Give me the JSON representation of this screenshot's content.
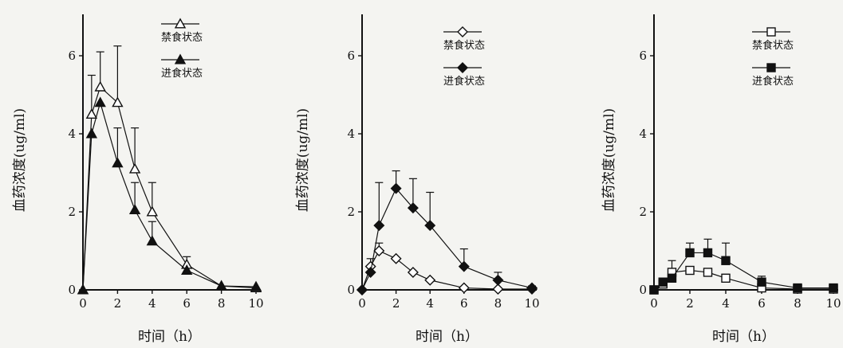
{
  "chart_data": [
    {
      "type": "line",
      "title": "",
      "xlabel": "时间（h）",
      "ylabel": "血药浓度(ug/ml)",
      "xlim": [
        0,
        10
      ],
      "ylim": [
        0,
        7
      ],
      "x_ticks": [
        "0",
        "2",
        "4",
        "6",
        "8",
        "10"
      ],
      "y_ticks": [
        "0",
        "2",
        "4",
        "6"
      ],
      "legend": "top-right",
      "series": [
        {
          "name": "禁食状态",
          "marker": "triangle-open",
          "x": [
            0,
            0.5,
            1,
            2,
            3,
            4,
            6,
            8,
            10
          ],
          "y": [
            0,
            4.5,
            5.2,
            4.8,
            3.1,
            2.0,
            0.65,
            0.1,
            0.05
          ],
          "error": [
            0,
            1.0,
            0.9,
            1.45,
            1.05,
            0.75,
            0.2,
            0,
            0
          ]
        },
        {
          "name": "进食状态",
          "marker": "triangle-filled",
          "x": [
            0,
            0.5,
            1,
            2,
            3,
            4,
            6,
            8,
            10
          ],
          "y": [
            0,
            4.0,
            4.8,
            3.25,
            2.05,
            1.25,
            0.5,
            0.1,
            0.08
          ],
          "error": [
            0,
            0,
            0,
            0.9,
            0.7,
            0.5,
            0,
            0,
            0
          ]
        }
      ]
    },
    {
      "type": "line",
      "title": "",
      "xlabel": "时间（h）",
      "ylabel": "血药浓度(ug/ml)",
      "xlim": [
        0,
        10
      ],
      "ylim": [
        0,
        7
      ],
      "x_ticks": [
        "0",
        "2",
        "4",
        "6",
        "8",
        "10"
      ],
      "y_ticks": [
        "0",
        "2",
        "4",
        "6"
      ],
      "legend": "top-right",
      "series": [
        {
          "name": "禁食状态",
          "marker": "diamond-open",
          "x": [
            0,
            0.5,
            1,
            2,
            3,
            4,
            6,
            8,
            10
          ],
          "y": [
            0,
            0.6,
            1.0,
            0.8,
            0.45,
            0.25,
            0.05,
            0.02,
            0.02
          ],
          "error": [
            0,
            0.2,
            0.2,
            0,
            0,
            0,
            0,
            0,
            0
          ]
        },
        {
          "name": "进食状态",
          "marker": "diamond-filled",
          "x": [
            0,
            0.5,
            1,
            2,
            3,
            4,
            6,
            8,
            10
          ],
          "y": [
            0,
            0.45,
            1.65,
            2.6,
            2.1,
            1.65,
            0.6,
            0.25,
            0.05
          ],
          "error": [
            0,
            0,
            1.1,
            0.45,
            0.75,
            0.85,
            0.45,
            0.2,
            0.05
          ]
        }
      ]
    },
    {
      "type": "line",
      "title": "",
      "xlabel": "时间（h）",
      "ylabel": "血药浓度(ug/ml)",
      "xlim": [
        0,
        10
      ],
      "ylim": [
        0,
        7
      ],
      "x_ticks": [
        "0",
        "2",
        "4",
        "6",
        "8",
        "10"
      ],
      "y_ticks": [
        "0",
        "2",
        "4",
        "6"
      ],
      "legend": "top-right",
      "series": [
        {
          "name": "禁食状态",
          "marker": "square-open",
          "x": [
            0,
            0.5,
            1,
            2,
            3,
            4,
            6,
            8,
            10
          ],
          "y": [
            0,
            0.15,
            0.45,
            0.5,
            0.45,
            0.3,
            0.05,
            0.02,
            0.02
          ],
          "error": [
            0,
            0,
            0.3,
            0,
            0,
            0,
            0,
            0,
            0
          ]
        },
        {
          "name": "进食状态",
          "marker": "square-filled",
          "x": [
            0,
            0.5,
            1,
            2,
            3,
            4,
            6,
            8,
            10
          ],
          "y": [
            0,
            0.2,
            0.3,
            0.95,
            0.95,
            0.75,
            0.2,
            0.05,
            0.05
          ],
          "error": [
            0,
            0,
            0,
            0.25,
            0.35,
            0.45,
            0.15,
            0,
            0
          ]
        }
      ]
    }
  ]
}
